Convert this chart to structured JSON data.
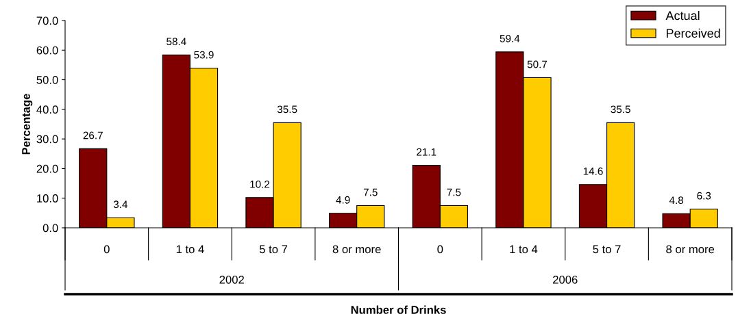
{
  "chart_data": {
    "type": "bar",
    "xlabel": "Number of Drinks",
    "ylabel": "Percentage",
    "categories": [
      "0",
      "1 to 4",
      "5 to 7",
      "8 or more",
      "0",
      "1 to 4",
      "5 to 7",
      "8 or more"
    ],
    "series": [
      {
        "name": "Actual",
        "color": "#800000",
        "values": [
          26.7,
          58.4,
          10.2,
          4.9,
          21.1,
          59.4,
          14.6,
          4.8
        ]
      },
      {
        "name": "Perceived",
        "color": "#ffcc00",
        "values": [
          3.4,
          53.9,
          35.5,
          7.5,
          7.5,
          50.7,
          35.5,
          6.3
        ]
      }
    ],
    "ylim": [
      0,
      70
    ],
    "yticks": [
      {
        "value": 0,
        "label": "0.0"
      },
      {
        "value": 10,
        "label": "10.0"
      },
      {
        "value": 20,
        "label": "20.0"
      },
      {
        "value": 30,
        "label": "30.0"
      },
      {
        "value": 40,
        "label": "40.0"
      },
      {
        "value": 50,
        "label": "50.0"
      },
      {
        "value": 60,
        "label": "60.0"
      },
      {
        "value": 70,
        "label": "70.0"
      }
    ],
    "annotations": [
      "2002",
      "2006"
    ],
    "data_labels": true,
    "legend": "top right",
    "grid": false
  }
}
